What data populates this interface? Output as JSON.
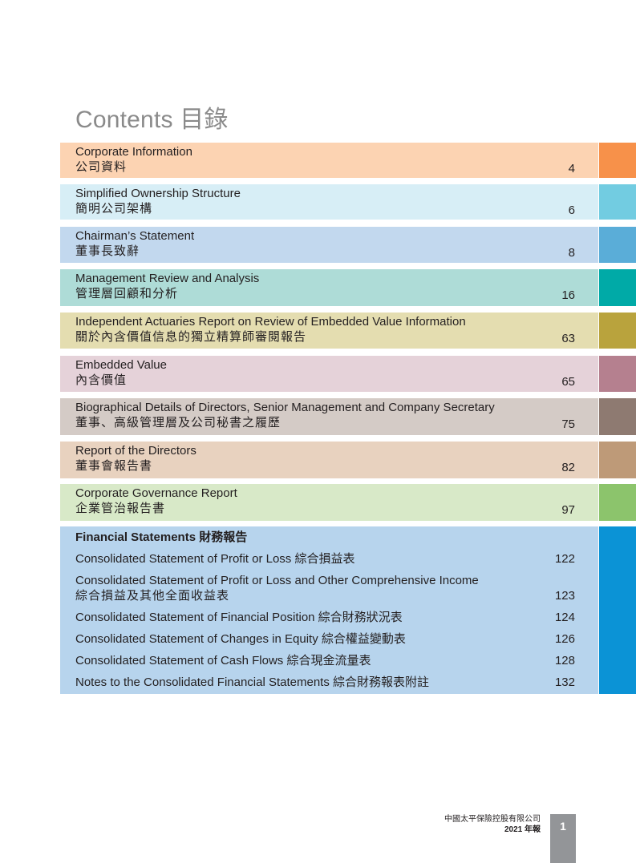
{
  "title": "Contents 目錄",
  "entries": [
    {
      "en": "Corporate Information",
      "zh": "公司資料",
      "page": "4",
      "bg": "#fcd3b2",
      "tab": "#f7914a"
    },
    {
      "en": "Simplified Ownership Structure",
      "zh": "簡明公司架構",
      "page": "6",
      "bg": "#d7eef6",
      "tab": "#72cce1"
    },
    {
      "en": "Chairman’s Statement",
      "zh": "董事長致辭",
      "page": "8",
      "bg": "#c2d8ee",
      "tab": "#5aadd8"
    },
    {
      "en": "Management Review and Analysis",
      "zh": "管理層回顧和分析",
      "page": "16",
      "bg": "#aedcd7",
      "tab": "#00aaa7"
    },
    {
      "en": "Independent Actuaries Report on Review of Embedded Value Information",
      "zh": "關於內含價值信息的獨立精算師審閱報告",
      "page": "63",
      "bg": "#e4ddb0",
      "tab": "#b9a33d"
    },
    {
      "en": "Embedded Value",
      "zh": "內含價值",
      "page": "65",
      "bg": "#e5d2d9",
      "tab": "#b5808f"
    },
    {
      "en": "Biographical Details of Directors, Senior Management and Company Secretary",
      "zh": "董事、高級管理層及公司秘書之履歷",
      "page": "75",
      "bg": "#d4cbc6",
      "tab": "#8e7a71"
    },
    {
      "en": "Report of the Directors",
      "zh": "董事會報告書",
      "page": "82",
      "bg": "#e8d2bf",
      "tab": "#be9a78"
    },
    {
      "en": "Corporate Governance Report",
      "zh": "企業管治報告書",
      "page": "97",
      "bg": "#d8e9c8",
      "tab": "#8cc46c"
    }
  ],
  "financial": {
    "heading": "Financial Statements 財務報告",
    "bg": "#b7d4ed",
    "tab": "#0b93d6",
    "items": [
      {
        "line1": "Consolidated Statement of Profit or Loss 綜合損益表",
        "line2": "",
        "page": "122"
      },
      {
        "line1": "Consolidated Statement of Profit or Loss and Other Comprehensive Income",
        "line2": "綜合損益及其他全面收益表",
        "page": "123"
      },
      {
        "line1": "Consolidated Statement of Financial Position 綜合財務狀況表",
        "line2": "",
        "page": "124"
      },
      {
        "line1": "Consolidated Statement of Changes in Equity 綜合權益變動表",
        "line2": "",
        "page": "126"
      },
      {
        "line1": "Consolidated Statement of Cash Flows 綜合現金流量表",
        "line2": "",
        "page": "128"
      },
      {
        "line1": "Notes to the Consolidated Financial Statements 綜合財務報表附註",
        "line2": "",
        "page": "132"
      }
    ]
  },
  "footer": {
    "company": "中國太平保險控股有限公司",
    "year": "2021 年報",
    "page_number": "1"
  }
}
